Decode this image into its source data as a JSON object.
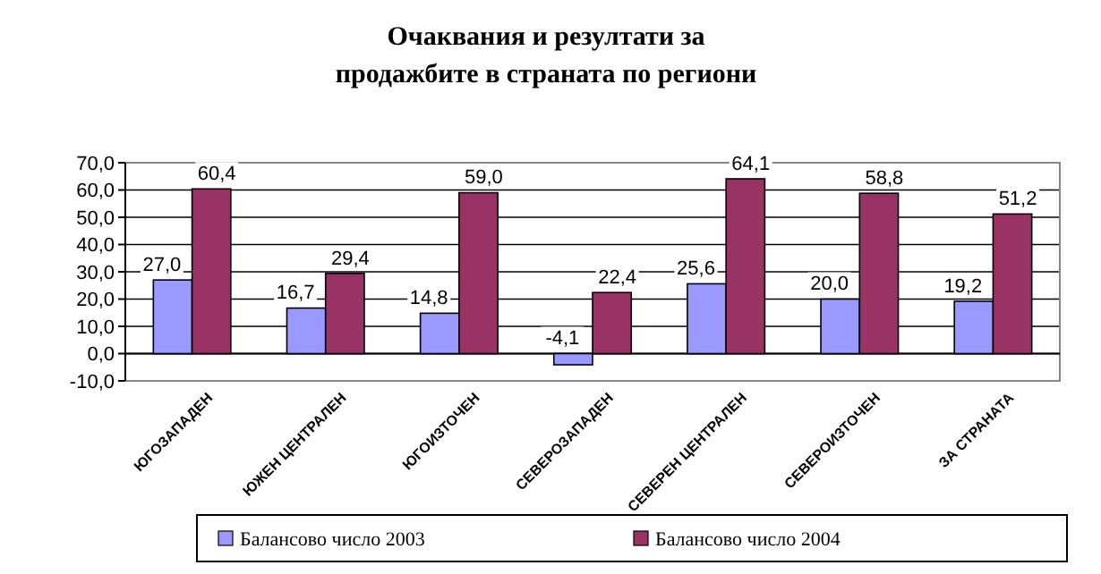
{
  "chart_data": {
    "type": "bar",
    "title": "Очаквания и резултати за\nпродажбите в страната по региони",
    "categories": [
      "ЮГОЗАПАДЕН",
      "ЮЖЕН ЦЕНТРАЛЕН",
      "ЮГОИЗТОЧЕН",
      "СЕВЕРОЗАПАДЕН",
      "СЕВЕРЕН ЦЕНТРАЛЕН",
      "СЕВЕРОИЗТОЧЕН",
      "ЗА СТРАНАТА"
    ],
    "series": [
      {
        "name": "Балансово число 2003",
        "color": "#9999ff",
        "values": [
          27.0,
          16.7,
          14.8,
          -4.1,
          25.6,
          20.0,
          19.2
        ],
        "value_labels": [
          "27,0",
          "16,7",
          "14,8",
          "-4,1",
          "25,6",
          "20,0",
          "19,2"
        ]
      },
      {
        "name": "Балансово число 2004",
        "color": "#993366",
        "values": [
          60.4,
          29.4,
          59.0,
          22.4,
          64.1,
          58.8,
          51.2
        ],
        "value_labels": [
          "60,4",
          "29,4",
          "59,0",
          "22,4",
          "64,1",
          "58,8",
          "51,2"
        ]
      }
    ],
    "ylim": [
      -10,
      70
    ],
    "yticks": [
      {
        "value": -10,
        "label": "-10,0"
      },
      {
        "value": 0,
        "label": "0,0"
      },
      {
        "value": 10,
        "label": "10,0"
      },
      {
        "value": 20,
        "label": "20,0"
      },
      {
        "value": 30,
        "label": "30,0"
      },
      {
        "value": 40,
        "label": "40,0"
      },
      {
        "value": 50,
        "label": "50,0"
      },
      {
        "value": 60,
        "label": "60,0"
      },
      {
        "value": 70,
        "label": "70,0"
      }
    ],
    "grid": "y",
    "legend": "bottom"
  }
}
